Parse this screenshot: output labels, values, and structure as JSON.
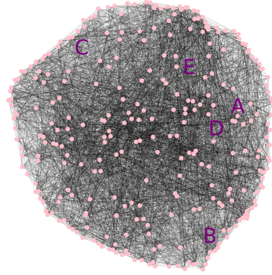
{
  "graph": {
    "node_color": "#ffc0cb",
    "edge_color": "#000000",
    "label_color": "#800080",
    "labels": [
      {
        "id": "A",
        "text": "A"
      },
      {
        "id": "B",
        "text": "B"
      },
      {
        "id": "C",
        "text": "C"
      },
      {
        "id": "D",
        "text": "D"
      },
      {
        "id": "E",
        "text": "E"
      }
    ]
  }
}
